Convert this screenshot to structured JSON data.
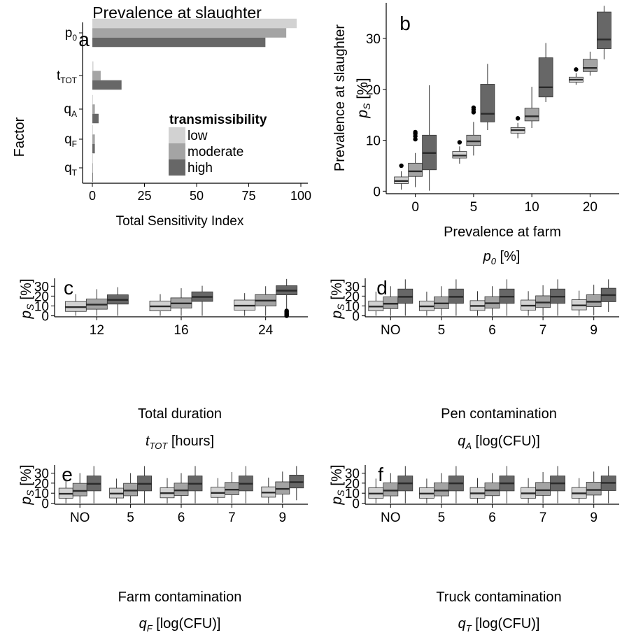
{
  "colors": {
    "low": "#d2d2d2",
    "moderate": "#a4a4a4",
    "high": "#676767",
    "axis": "#000000",
    "median": "#333333"
  },
  "chart_data": [
    {
      "panel": "a",
      "type": "bar",
      "orientation": "horizontal",
      "title": "Prevalence at slaughter",
      "ylabel": "Factor",
      "xlabel": "Total Sensitivity Index",
      "categories": [
        {
          "main": "p",
          "sub": "0"
        },
        {
          "main": "t",
          "sub": "TOT"
        },
        {
          "main": "q",
          "sub": "A"
        },
        {
          "main": "q",
          "sub": "F"
        },
        {
          "main": "q",
          "sub": "T"
        }
      ],
      "xlim": [
        0,
        100
      ],
      "xticks": [
        "0",
        "25",
        "50",
        "75",
        "100"
      ],
      "legend_title": "transmissibility",
      "series": [
        {
          "name": "low",
          "values": [
            98,
            0.5,
            0.3,
            0.3,
            0.3
          ]
        },
        {
          "name": "moderate",
          "values": [
            93,
            4,
            1.2,
            1.2,
            0.3
          ]
        },
        {
          "name": "high",
          "values": [
            83,
            14,
            3,
            1.2,
            0.3
          ]
        }
      ]
    },
    {
      "panel": "b",
      "type": "box",
      "ylabel_main": "p",
      "ylabel_sub": "S",
      "ylabel_unit": " [%]",
      "ylabel_outer": "Prevalence at slaughter",
      "xlabel_main": "Prevalence at farm",
      "xlabel_var": "p",
      "xlabel_sub": "0",
      "xlabel_unit": " [%]",
      "categories": [
        "0",
        "5",
        "10",
        "20"
      ],
      "ylim": [
        -0.5,
        37
      ],
      "yticks": [
        0,
        10,
        20,
        30
      ],
      "series": [
        "low",
        "moderate",
        "high"
      ],
      "boxes": [
        [
          {
            "min": 0.3,
            "q1": 1.5,
            "med": 2,
            "q3": 2.8,
            "max": 3.9,
            "out": [
              5
            ]
          },
          {
            "min": 0.8,
            "q1": 2.9,
            "med": 3.9,
            "q3": 5.5,
            "max": 7.5,
            "out": [
              10.2,
              10.8,
              11.3,
              11.6
            ]
          },
          {
            "min": 0.1,
            "q1": 4.2,
            "med": 7.5,
            "q3": 11,
            "max": 20.8,
            "out": []
          }
        ],
        [
          {
            "min": 5.4,
            "q1": 6.5,
            "med": 7,
            "q3": 7.8,
            "max": 8.8,
            "out": [
              9.6
            ]
          },
          {
            "min": 7,
            "q1": 8.9,
            "med": 9.8,
            "q3": 11,
            "max": 13.6,
            "out": [
              15.5,
              16,
              16.4
            ]
          },
          {
            "min": 12,
            "q1": 13.6,
            "med": 15.2,
            "q3": 21,
            "max": 25
          }
        ],
        [
          {
            "min": 10.4,
            "q1": 11.4,
            "med": 12,
            "q3": 12.5,
            "max": 13.4,
            "out": [
              14.3
            ]
          },
          {
            "min": 12.4,
            "q1": 13.8,
            "med": 14.7,
            "q3": 16.3,
            "max": 20.5
          },
          {
            "min": 17.5,
            "q1": 18.5,
            "med": 20.4,
            "q3": 26.2,
            "max": 29.1
          }
        ],
        [
          {
            "min": 20.9,
            "q1": 21.4,
            "med": 21.9,
            "q3": 22.4,
            "max": 23.2,
            "out": [
              23.9
            ]
          },
          {
            "min": 22.7,
            "q1": 23.5,
            "med": 24.2,
            "q3": 25.9,
            "max": 27.4
          },
          {
            "min": 25.9,
            "q1": 28,
            "med": 29.8,
            "q3": 35.2,
            "max": 36.4
          }
        ]
      ]
    },
    {
      "panel": "c",
      "type": "box",
      "ylabel_main": "p",
      "ylabel_sub": "S",
      "ylabel_unit": " [%]",
      "xlabel_main": "Total duration",
      "xlabel_var": "t",
      "xlabel_sub": "TOT",
      "xlabel_unit": " [hours]",
      "categories": [
        "12",
        "16",
        "24"
      ],
      "ylim": [
        -1,
        38
      ],
      "yticks": [
        0,
        10,
        20,
        30
      ],
      "series": [
        "low",
        "moderate",
        "high"
      ],
      "boxes": [
        [
          {
            "min": 0,
            "q1": 4.5,
            "med": 8.8,
            "q3": 14.5,
            "max": 22
          },
          {
            "min": 0,
            "q1": 6.7,
            "med": 11.4,
            "q3": 17,
            "max": 27
          },
          {
            "min": 0,
            "q1": 11.9,
            "med": 16.2,
            "q3": 21.3,
            "max": 29
          }
        ],
        [
          {
            "min": 0,
            "q1": 5,
            "med": 9.6,
            "q3": 15,
            "max": 22
          },
          {
            "min": 0,
            "q1": 7.8,
            "med": 12.6,
            "q3": 18.2,
            "max": 28
          },
          {
            "min": 0,
            "q1": 14.6,
            "med": 19.2,
            "q3": 24.3,
            "max": 30.5
          }
        ],
        [
          {
            "min": 0,
            "q1": 5.8,
            "med": 10.3,
            "q3": 16,
            "max": 23
          },
          {
            "min": 0,
            "q1": 9.9,
            "med": 15.4,
            "q3": 21.5,
            "max": 30
          },
          {
            "min": 6,
            "q1": 21.3,
            "med": 25.5,
            "q3": 30.5,
            "max": 37.4,
            "out": [
              0,
              0.7,
              1.5,
              2.3,
              3.2,
              4.2,
              5.1
            ]
          }
        ]
      ]
    },
    {
      "panel": "d",
      "type": "box",
      "ylabel_main": "p",
      "ylabel_sub": "S",
      "ylabel_unit": " [%]",
      "xlabel_main": "Pen contamination",
      "xlabel_var": "q",
      "xlabel_sub": "A",
      "xlabel_unit": " [log(CFU)]",
      "categories": [
        "NO",
        "5",
        "6",
        "7",
        "9"
      ],
      "ylim": [
        -1,
        38
      ],
      "yticks": [
        0,
        10,
        20,
        30
      ],
      "series": [
        "low",
        "moderate",
        "high"
      ],
      "boxes": [
        [
          {
            "min": 0,
            "q1": 5,
            "med": 9.4,
            "q3": 15,
            "max": 24.5
          },
          {
            "min": 0,
            "q1": 7.3,
            "med": 12.3,
            "q3": 19.2,
            "max": 30
          },
          {
            "min": 0,
            "q1": 12.6,
            "med": 19.3,
            "q3": 27.2,
            "max": 37
          }
        ],
        [
          {
            "min": 0,
            "q1": 5.2,
            "med": 9.6,
            "q3": 15,
            "max": 24.5
          },
          {
            "min": 0,
            "q1": 7.3,
            "med": 12.6,
            "q3": 19.2,
            "max": 30
          },
          {
            "min": 0,
            "q1": 12.6,
            "med": 19.3,
            "q3": 27.2,
            "max": 37
          }
        ],
        [
          {
            "min": 0,
            "q1": 5.4,
            "med": 10,
            "q3": 15.4,
            "max": 25
          },
          {
            "min": 0,
            "q1": 7.7,
            "med": 12.8,
            "q3": 19.4,
            "max": 30
          },
          {
            "min": 0,
            "q1": 12.6,
            "med": 19.4,
            "q3": 27.2,
            "max": 37
          }
        ],
        [
          {
            "min": 0,
            "q1": 5.8,
            "med": 10.3,
            "q3": 16,
            "max": 25
          },
          {
            "min": 0,
            "q1": 8.4,
            "med": 13.5,
            "q3": 20.3,
            "max": 31
          },
          {
            "min": 0,
            "q1": 12.6,
            "med": 19.4,
            "q3": 27.2,
            "max": 37
          }
        ],
        [
          {
            "min": 0,
            "q1": 6,
            "med": 10.6,
            "q3": 16.3,
            "max": 25.5
          },
          {
            "min": 0.5,
            "q1": 9.2,
            "med": 14.3,
            "q3": 21.3,
            "max": 31.5
          },
          {
            "min": 4,
            "q1": 14.3,
            "med": 21,
            "q3": 28,
            "max": 37
          }
        ]
      ]
    },
    {
      "panel": "e",
      "type": "box",
      "ylabel_main": "p",
      "ylabel_sub": "S",
      "ylabel_unit": " [%]",
      "xlabel_main": "Farm contamination",
      "xlabel_var": "q",
      "xlabel_sub": "F",
      "xlabel_unit": " [log(CFU)]",
      "categories": [
        "NO",
        "5",
        "6",
        "7",
        "9"
      ],
      "ylim": [
        -1,
        38
      ],
      "yticks": [
        0,
        10,
        20,
        30
      ],
      "series": [
        "low",
        "moderate",
        "high"
      ],
      "boxes": [
        [
          {
            "min": 0,
            "q1": 5,
            "med": 9.4,
            "q3": 15,
            "max": 24.5
          },
          {
            "min": 0,
            "q1": 7.3,
            "med": 12.3,
            "q3": 19.8,
            "max": 30
          },
          {
            "min": 0,
            "q1": 12.3,
            "med": 19.3,
            "q3": 27.2,
            "max": 37
          }
        ],
        [
          {
            "min": 0,
            "q1": 5.2,
            "med": 9.6,
            "q3": 15,
            "max": 24.5
          },
          {
            "min": 0,
            "q1": 7.4,
            "med": 12.6,
            "q3": 19.8,
            "max": 30
          },
          {
            "min": 0,
            "q1": 12.3,
            "med": 19.3,
            "q3": 27.2,
            "max": 37
          }
        ],
        [
          {
            "min": 0,
            "q1": 5.4,
            "med": 10,
            "q3": 15.4,
            "max": 25
          },
          {
            "min": 0,
            "q1": 7.7,
            "med": 12.8,
            "q3": 20,
            "max": 30
          },
          {
            "min": 0,
            "q1": 12.3,
            "med": 19.4,
            "q3": 27.2,
            "max": 37
          }
        ],
        [
          {
            "min": 0,
            "q1": 5.8,
            "med": 10.3,
            "q3": 16,
            "max": 25
          },
          {
            "min": 0,
            "q1": 8.4,
            "med": 13.5,
            "q3": 20.7,
            "max": 31
          },
          {
            "min": 0,
            "q1": 12.3,
            "med": 19.4,
            "q3": 27.2,
            "max": 37
          }
        ],
        [
          {
            "min": 0,
            "q1": 6,
            "med": 10.6,
            "q3": 16.3,
            "max": 25.5
          },
          {
            "min": 0.5,
            "q1": 9,
            "med": 14.3,
            "q3": 21.3,
            "max": 31.5
          },
          {
            "min": 3,
            "q1": 15.2,
            "med": 21,
            "q3": 28,
            "max": 37
          }
        ]
      ]
    },
    {
      "panel": "f",
      "type": "box",
      "ylabel_main": "p",
      "ylabel_sub": "S",
      "ylabel_unit": " [%]",
      "xlabel_main": "Truck contamination",
      "xlabel_var": "q",
      "xlabel_sub": "T",
      "xlabel_unit": " [log(CFU)]",
      "categories": [
        "NO",
        "5",
        "6",
        "7",
        "9"
      ],
      "ylim": [
        -1,
        38
      ],
      "yticks": [
        0,
        10,
        20,
        30
      ],
      "series": [
        "low",
        "moderate",
        "high"
      ],
      "boxes": [
        [
          {
            "min": 0,
            "q1": 5,
            "med": 9.6,
            "q3": 15.4,
            "max": 24.5
          },
          {
            "min": 0,
            "q1": 7.3,
            "med": 12.6,
            "q3": 20.3,
            "max": 30
          },
          {
            "min": 0,
            "q1": 12.3,
            "med": 19.8,
            "q3": 27.2,
            "max": 37
          }
        ],
        [
          {
            "min": 0,
            "q1": 5,
            "med": 9.6,
            "q3": 15.4,
            "max": 24.5
          },
          {
            "min": 0,
            "q1": 7.3,
            "med": 12.6,
            "q3": 20.3,
            "max": 30
          },
          {
            "min": 0,
            "q1": 12.3,
            "med": 19.8,
            "q3": 27.2,
            "max": 37
          }
        ],
        [
          {
            "min": 0,
            "q1": 5,
            "med": 9.8,
            "q3": 15.6,
            "max": 25
          },
          {
            "min": 0,
            "q1": 7.5,
            "med": 12.8,
            "q3": 20.3,
            "max": 30
          },
          {
            "min": 0,
            "q1": 12.3,
            "med": 19.8,
            "q3": 27.2,
            "max": 37
          }
        ],
        [
          {
            "min": 0,
            "q1": 5,
            "med": 9.8,
            "q3": 15.6,
            "max": 25
          },
          {
            "min": 0,
            "q1": 7.8,
            "med": 13,
            "q3": 20.7,
            "max": 31
          },
          {
            "min": 0,
            "q1": 12.3,
            "med": 19.8,
            "q3": 27.2,
            "max": 37
          }
        ],
        [
          {
            "min": 0,
            "q1": 5,
            "med": 9.8,
            "q3": 15.6,
            "max": 25
          },
          {
            "min": 0,
            "q1": 8.1,
            "med": 13.2,
            "q3": 21,
            "max": 31.5
          },
          {
            "min": 0,
            "q1": 12.6,
            "med": 20.3,
            "q3": 27.2,
            "max": 37
          }
        ]
      ]
    }
  ]
}
